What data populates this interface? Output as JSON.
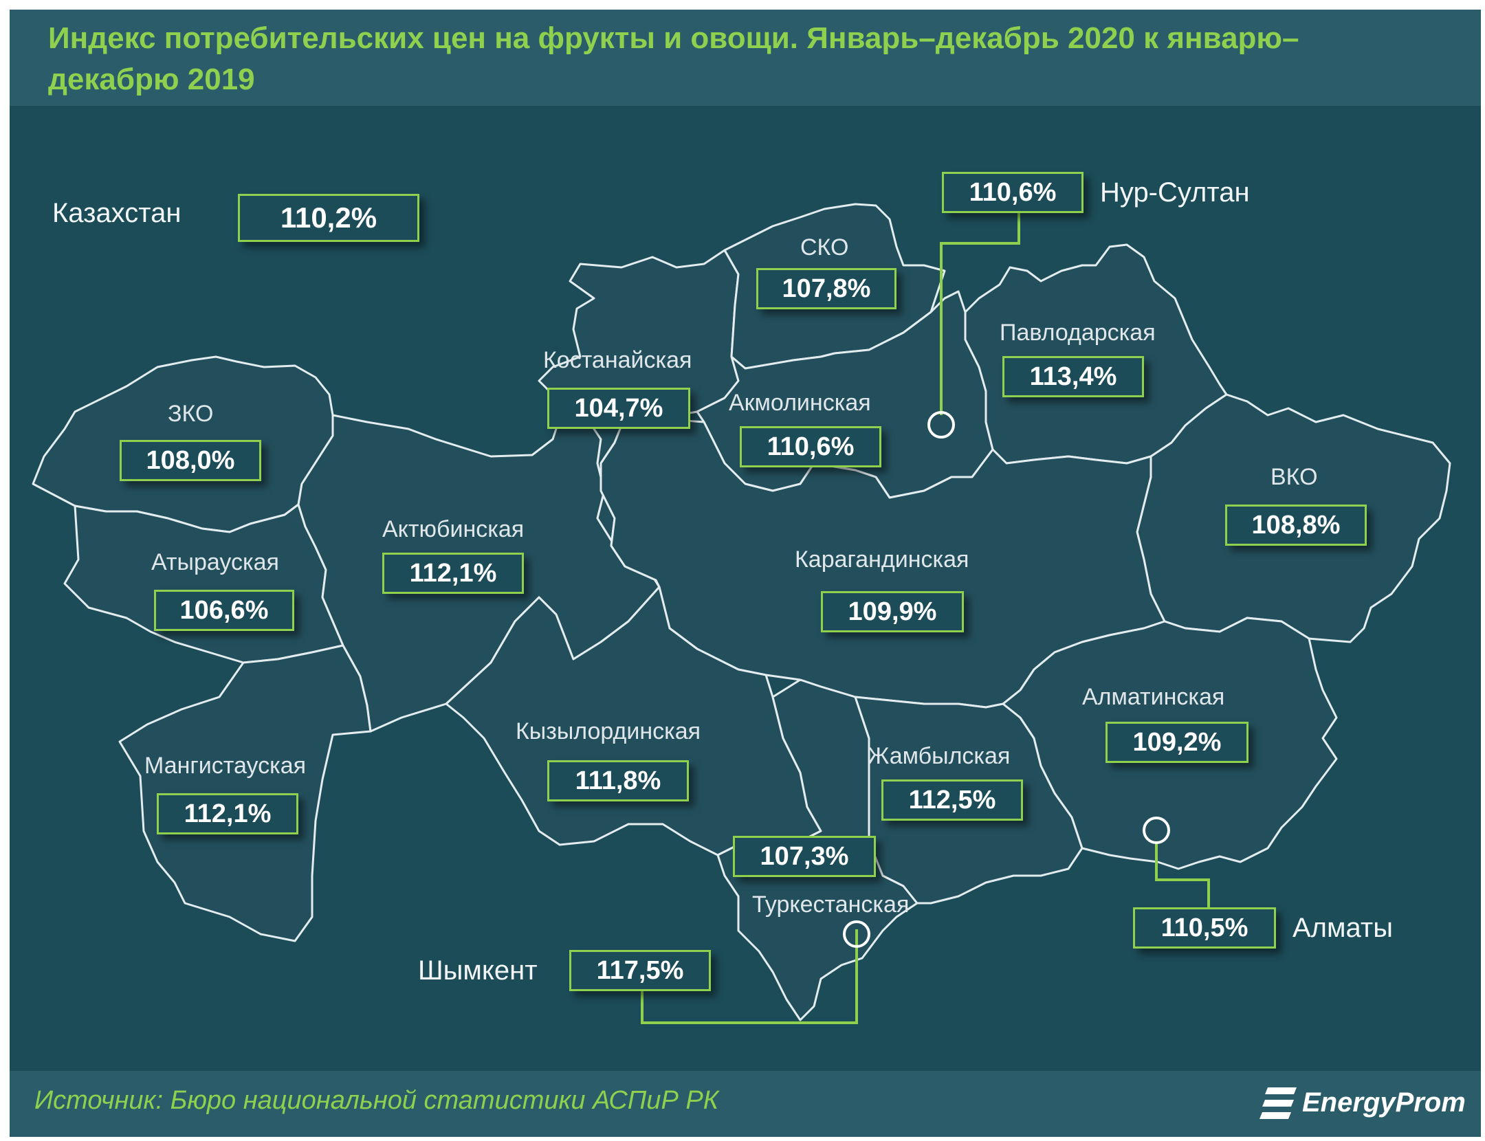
{
  "title": "Индекс потребительских цен на фрукты и овощи. Январь–декабрь 2020 к январю–декабрю 2019",
  "country": {
    "name": "Казахстан",
    "value": "110,2%"
  },
  "regions": [
    {
      "name": "ЗКО",
      "value": "108,0%"
    },
    {
      "name": "Атырауская",
      "value": "106,6%"
    },
    {
      "name": "Мангистауская",
      "value": "112,1%"
    },
    {
      "name": "Актюбинская",
      "value": "112,1%"
    },
    {
      "name": "Костанайская",
      "value": "104,7%"
    },
    {
      "name": "СКО",
      "value": "107,8%"
    },
    {
      "name": "Акмолинская",
      "value": "110,6%"
    },
    {
      "name": "Павлодарская",
      "value": "113,4%"
    },
    {
      "name": "ВКО",
      "value": "108,8%"
    },
    {
      "name": "Карагандинская",
      "value": "109,9%"
    },
    {
      "name": "Кызылординская",
      "value": "111,8%"
    },
    {
      "name": "Туркестанская",
      "value": "107,3%"
    },
    {
      "name": "Жамбылская",
      "value": "112,5%"
    },
    {
      "name": "Алматинская",
      "value": "109,2%"
    }
  ],
  "cities": [
    {
      "name": "Нур-Султан",
      "value": "110,6%"
    },
    {
      "name": "Алматы",
      "value": "110,5%"
    },
    {
      "name": "Шымкент",
      "value": "117,5%"
    }
  ],
  "source": "Источник: Бюро национальной статистики АСПиР РК",
  "logo": "EnergyProm",
  "colors": {
    "background": "#1c4c58",
    "region_fill": "#234f5c",
    "accent": "#8fd14f",
    "border": "#e3ecee"
  }
}
